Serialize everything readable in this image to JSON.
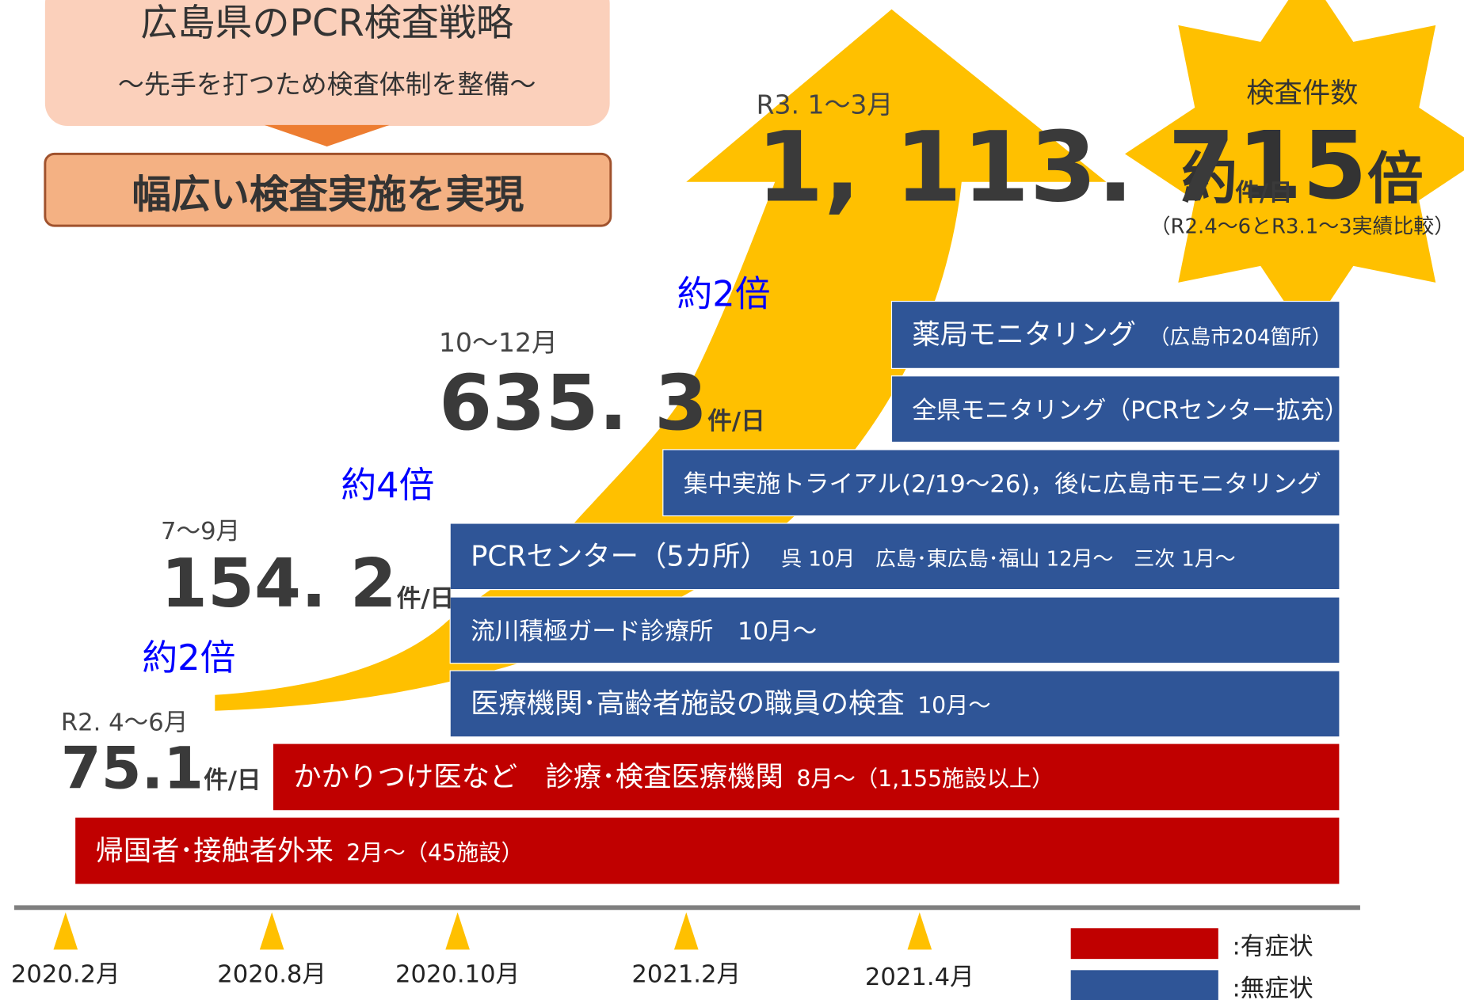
{
  "header": {
    "title": "広島県のPCR検査戦略",
    "subtitle": "～先手を打つため検査体制を整備～",
    "result": "幅広い検査実施を実現"
  },
  "stats": [
    {
      "period": "R2. 4～6月",
      "value": "75.1",
      "unit": "件/日"
    },
    {
      "period": "7～9月",
      "value": "154. 2",
      "unit": "件/日"
    },
    {
      "period": "10～12月",
      "value": "635. 3",
      "unit": "件/日"
    },
    {
      "period": "R3. 1～3月",
      "value": "1, 113. 7",
      "unit": "件/日"
    }
  ],
  "multipliers": [
    "約2倍",
    "約4倍",
    "約2倍"
  ],
  "star": {
    "label": "検査件数",
    "prefix": "約",
    "value": "15",
    "suffix": "倍",
    "note": "（R2.4～6とR3.1～3実績比較）"
  },
  "bars": [
    {
      "main": "薬局モニタリング",
      "sub": "（広島市204箇所）",
      "color": "#2f5597"
    },
    {
      "main": "全県モニタリング（PCRセンター拡充）",
      "color": "#2f5597"
    },
    {
      "main": "集中実施トライアル(2/19～26)，後に広島市モニタリング",
      "color": "#2f5597"
    },
    {
      "main": "PCRセンター（5カ所）",
      "sub": "呉 10月　広島･東広島･福山 12月～　三次 1月～",
      "color": "#2f5597"
    },
    {
      "main": "流川積極ガード診療所　10月～",
      "color": "#2f5597"
    },
    {
      "main": "医療機関･高齢者施設の職員の検査",
      "sub": "10月～",
      "color": "#2f5597"
    },
    {
      "main": "かかりつけ医など　診療･検査医療機関",
      "sub": "8月～（1,155施設以上）",
      "color": "#c00000"
    },
    {
      "main": "帰国者･接触者外来",
      "sub": "2月～（45施設）",
      "color": "#c00000"
    }
  ],
  "timeline": [
    "2020.2月",
    "2020.8月",
    "2020.10月",
    "2021.2月",
    "2021.4月"
  ],
  "legend": [
    {
      "label": ":有症状",
      "color": "#c00000"
    },
    {
      "label": ":無症状",
      "color": "#2f5597"
    }
  ]
}
